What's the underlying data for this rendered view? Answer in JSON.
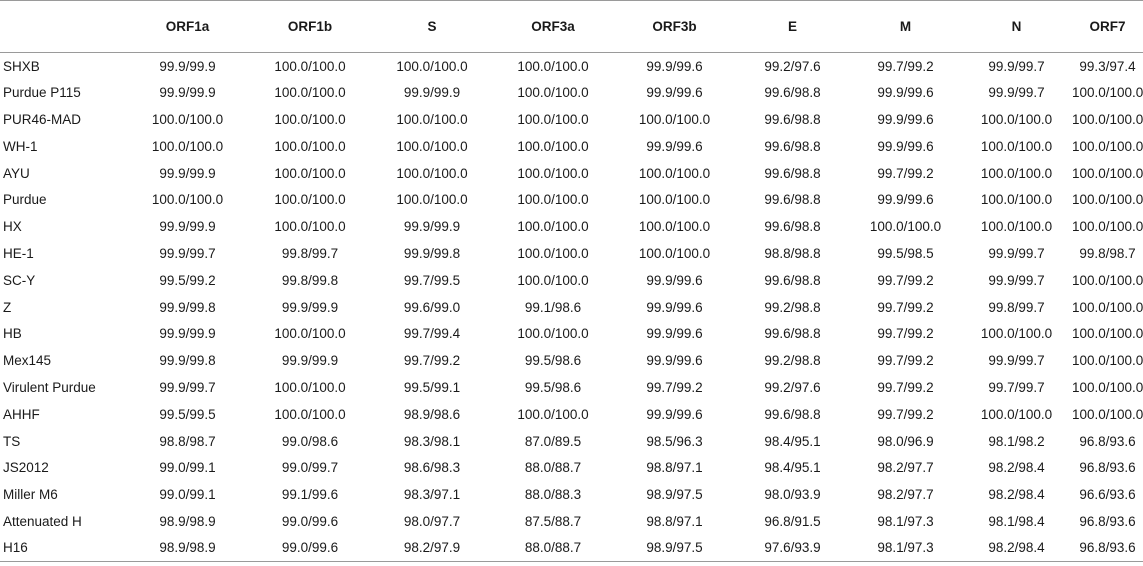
{
  "table": {
    "columns": [
      "",
      "ORF1a",
      "ORF1b",
      "S",
      "ORF3a",
      "ORF3b",
      "E",
      "M",
      "N",
      "ORF7"
    ],
    "rows": [
      [
        "SHXB",
        "99.9/99.9",
        "100.0/100.0",
        "100.0/100.0",
        "100.0/100.0",
        "99.9/99.6",
        "99.2/97.6",
        "99.7/99.2",
        "99.9/99.7",
        "99.3/97.4"
      ],
      [
        "Purdue P115",
        "99.9/99.9",
        "100.0/100.0",
        "99.9/99.9",
        "100.0/100.0",
        "99.9/99.6",
        "99.6/98.8",
        "99.9/99.6",
        "99.9/99.7",
        "100.0/100.0"
      ],
      [
        "PUR46-MAD",
        "100.0/100.0",
        "100.0/100.0",
        "100.0/100.0",
        "100.0/100.0",
        "100.0/100.0",
        "99.6/98.8",
        "99.9/99.6",
        "100.0/100.0",
        "100.0/100.0"
      ],
      [
        "WH-1",
        "100.0/100.0",
        "100.0/100.0",
        "100.0/100.0",
        "100.0/100.0",
        "99.9/99.6",
        "99.6/98.8",
        "99.9/99.6",
        "100.0/100.0",
        "100.0/100.0"
      ],
      [
        "AYU",
        "99.9/99.9",
        "100.0/100.0",
        "100.0/100.0",
        "100.0/100.0",
        "100.0/100.0",
        "99.6/98.8",
        "99.7/99.2",
        "100.0/100.0",
        "100.0/100.0"
      ],
      [
        "Purdue",
        "100.0/100.0",
        "100.0/100.0",
        "100.0/100.0",
        "100.0/100.0",
        "100.0/100.0",
        "99.6/98.8",
        "99.9/99.6",
        "100.0/100.0",
        "100.0/100.0"
      ],
      [
        "HX",
        "99.9/99.9",
        "100.0/100.0",
        "99.9/99.9",
        "100.0/100.0",
        "100.0/100.0",
        "99.6/98.8",
        "100.0/100.0",
        "100.0/100.0",
        "100.0/100.0"
      ],
      [
        "HE-1",
        "99.9/99.7",
        "99.8/99.7",
        "99.9/99.8",
        "100.0/100.0",
        "100.0/100.0",
        "98.8/98.8",
        "99.5/98.5",
        "99.9/99.7",
        "99.8/98.7"
      ],
      [
        "SC-Y",
        "99.5/99.2",
        "99.8/99.8",
        "99.7/99.5",
        "100.0/100.0",
        "99.9/99.6",
        "99.6/98.8",
        "99.7/99.2",
        "99.9/99.7",
        "100.0/100.0"
      ],
      [
        "Z",
        "99.9/99.8",
        "99.9/99.9",
        "99.6/99.0",
        "99.1/98.6",
        "99.9/99.6",
        "99.2/98.8",
        "99.7/99.2",
        "99.8/99.7",
        "100.0/100.0"
      ],
      [
        "HB",
        "99.9/99.9",
        "100.0/100.0",
        "99.7/99.4",
        "100.0/100.0",
        "99.9/99.6",
        "99.6/98.8",
        "99.7/99.2",
        "100.0/100.0",
        "100.0/100.0"
      ],
      [
        "Mex145",
        "99.9/99.8",
        "99.9/99.9",
        "99.7/99.2",
        "99.5/98.6",
        "99.9/99.6",
        "99.2/98.8",
        "99.7/99.2",
        "99.9/99.7",
        "100.0/100.0"
      ],
      [
        "Virulent Purdue",
        "99.9/99.7",
        "100.0/100.0",
        "99.5/99.1",
        "99.5/98.6",
        "99.7/99.2",
        "99.2/97.6",
        "99.7/99.2",
        "99.7/99.7",
        "100.0/100.0"
      ],
      [
        "AHHF",
        "99.5/99.5",
        "100.0/100.0",
        "98.9/98.6",
        "100.0/100.0",
        "99.9/99.6",
        "99.6/98.8",
        "99.7/99.2",
        "100.0/100.0",
        "100.0/100.0"
      ],
      [
        "TS",
        "98.8/98.7",
        "99.0/98.6",
        "98.3/98.1",
        "87.0/89.5",
        "98.5/96.3",
        "98.4/95.1",
        "98.0/96.9",
        "98.1/98.2",
        "96.8/93.6"
      ],
      [
        "JS2012",
        "99.0/99.1",
        "99.0/99.7",
        "98.6/98.3",
        "88.0/88.7",
        "98.8/97.1",
        "98.4/95.1",
        "98.2/97.7",
        "98.2/98.4",
        "96.8/93.6"
      ],
      [
        "Miller M6",
        "99.0/99.1",
        "99.1/99.6",
        "98.3/97.1",
        "88.0/88.3",
        "98.9/97.5",
        "98.0/93.9",
        "98.2/97.7",
        "98.2/98.4",
        "96.6/93.6"
      ],
      [
        "Attenuated H",
        "98.9/98.9",
        "99.0/99.6",
        "98.0/97.7",
        "87.5/88.7",
        "98.8/97.1",
        "96.8/91.5",
        "98.1/97.3",
        "98.1/98.4",
        "96.8/93.6"
      ],
      [
        "H16",
        "98.9/98.9",
        "99.0/99.6",
        "98.2/97.9",
        "88.0/88.7",
        "98.9/97.5",
        "97.6/93.9",
        "98.1/97.3",
        "98.2/98.4",
        "96.8/93.6"
      ]
    ]
  }
}
